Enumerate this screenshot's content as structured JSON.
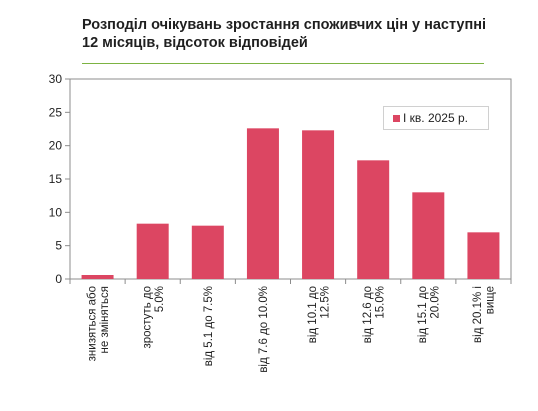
{
  "chart_data": {
    "type": "bar",
    "title": "Розподіл очікувань зростання споживчих цін у наступні 12 місяців, відсоток відповідей",
    "categories": [
      [
        "знизяться або",
        "не зміняться"
      ],
      [
        "зростуть до",
        "5.0%"
      ],
      [
        "від 5.1 до 7.5%"
      ],
      [
        "від 7.6 до 10.0%"
      ],
      [
        "від 10.1 до",
        "12.5%"
      ],
      [
        "від 12.6 до",
        "15.0%"
      ],
      [
        "від 15.1 до",
        "20.0%"
      ],
      [
        "від 20.1% і",
        "вище"
      ]
    ],
    "series": [
      {
        "name": "I кв. 2025 р.",
        "values": [
          0.6,
          8.3,
          8.0,
          22.6,
          22.3,
          17.8,
          13.0,
          7.0
        ]
      }
    ],
    "ylim": [
      0,
      30
    ],
    "yticks": [
      0,
      5,
      10,
      15,
      20,
      25,
      30
    ],
    "xlabel": "",
    "ylabel": "",
    "legend_position": "top-right",
    "bar_color": "#dc4662",
    "grid": false
  }
}
